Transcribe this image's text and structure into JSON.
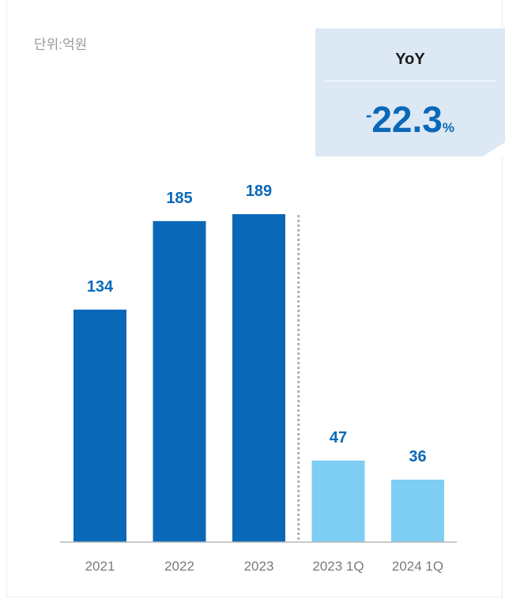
{
  "unit_label": "단위:억원",
  "yoy": {
    "title": "YoY",
    "sign": "-",
    "number": "22.3",
    "percent": "%"
  },
  "colors": {
    "annual_bar": "#0a68b8",
    "quarter_bar": "#7ecdf2",
    "value_label": "#0a68b8",
    "axis_label": "#7a7a7a",
    "baseline": "#b8b8b8",
    "separator": "#b0b0b0"
  },
  "chart_data": {
    "type": "bar",
    "categories": [
      "2021",
      "2022",
      "2023",
      "2023 1Q",
      "2024 1Q"
    ],
    "values": [
      134,
      185,
      189,
      47,
      36
    ],
    "groups": [
      "annual",
      "annual",
      "annual",
      "quarter",
      "quarter"
    ],
    "title": "",
    "xlabel": "",
    "ylabel": "",
    "ylim": [
      0,
      189
    ],
    "grid": false,
    "legend": "none",
    "value_labels": true
  }
}
